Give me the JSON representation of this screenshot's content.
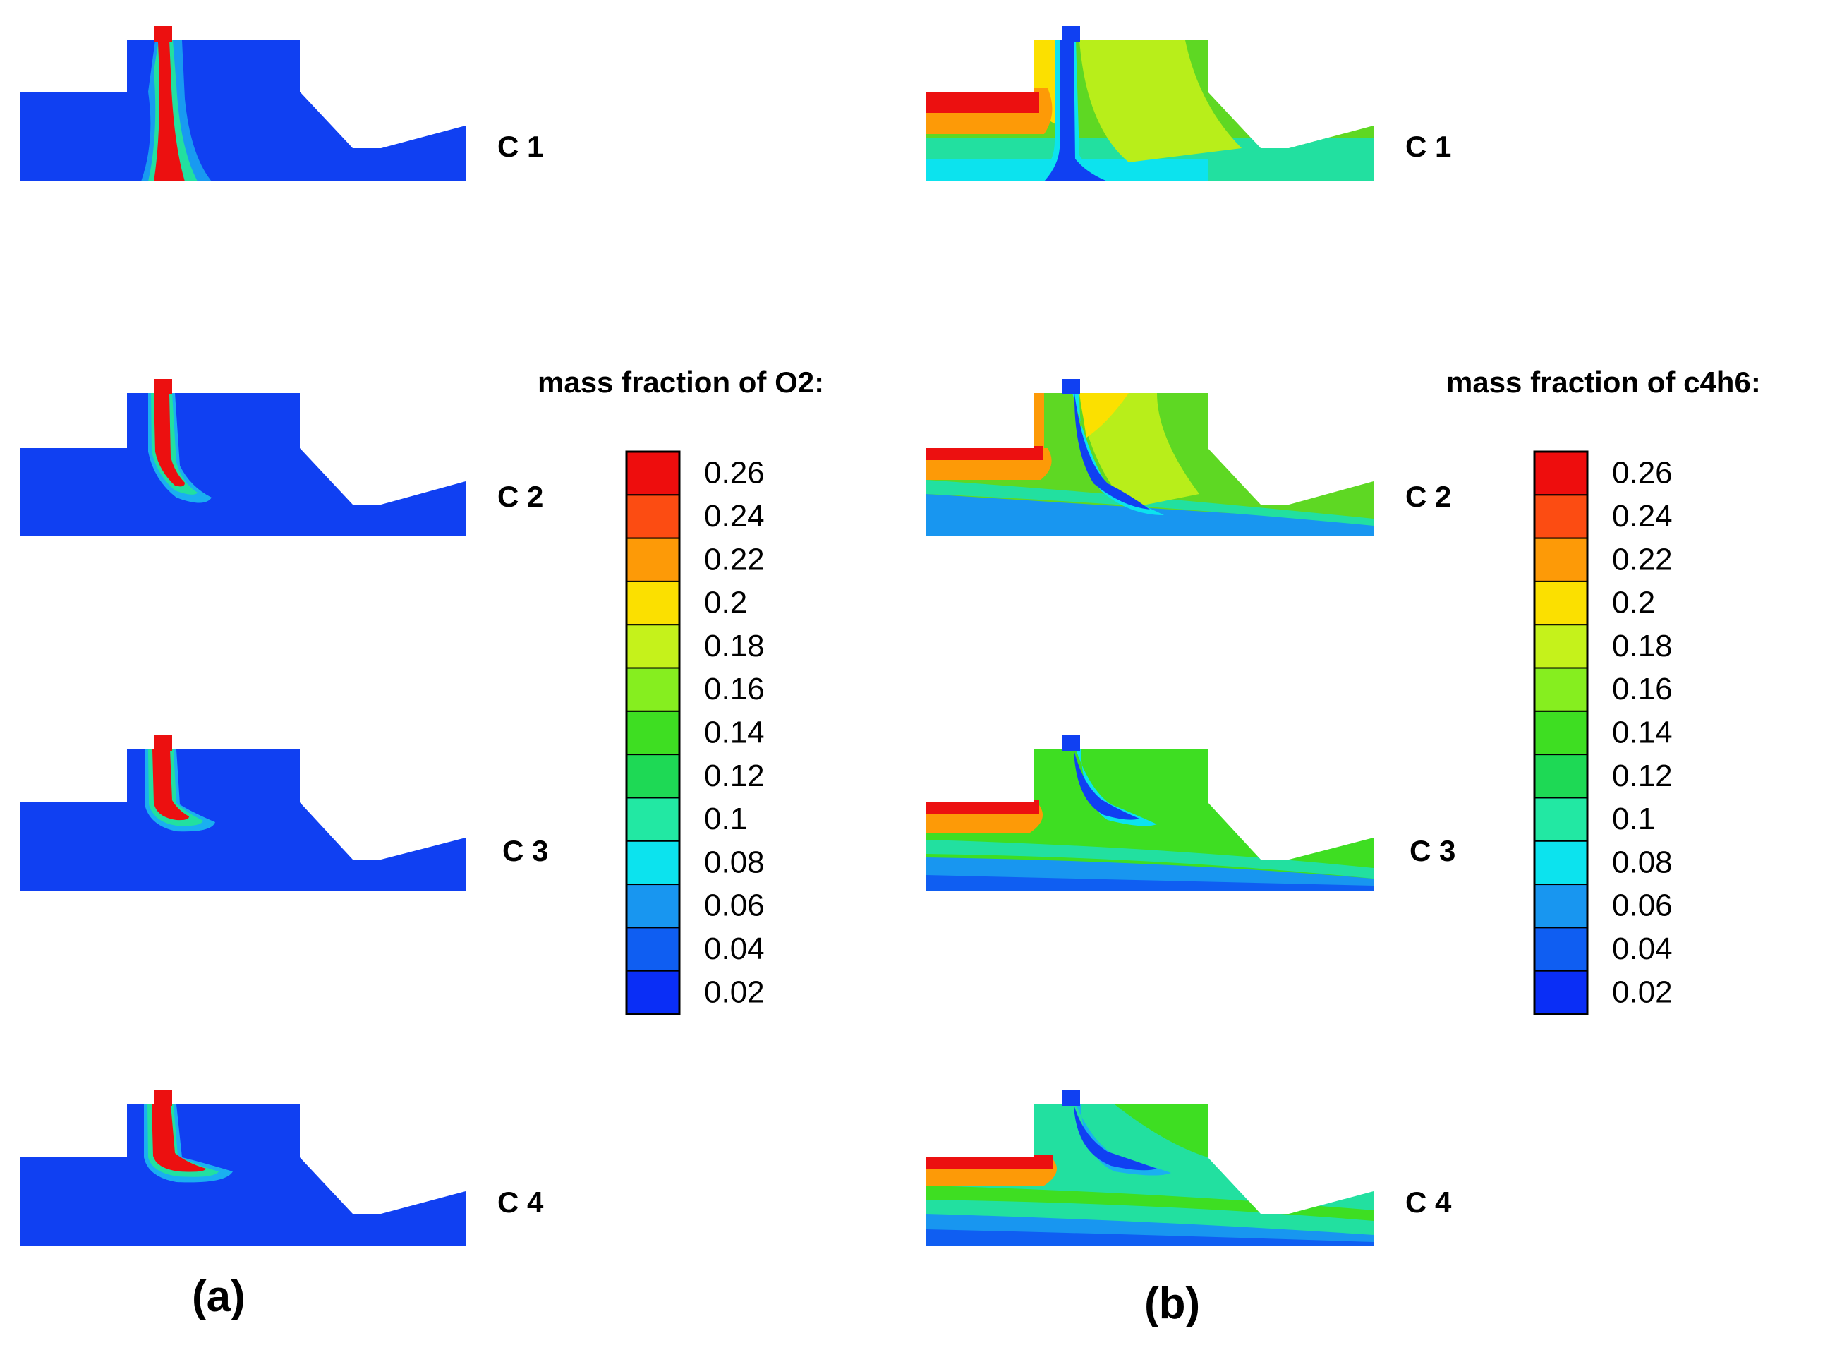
{
  "panel_a": {
    "label": "(a)",
    "legend_title": "mass fraction of O2:",
    "cases": [
      {
        "label": "C 1"
      },
      {
        "label": "C 2"
      },
      {
        "label": "C 3"
      },
      {
        "label": "C 4"
      }
    ]
  },
  "panel_b": {
    "label": "(b)",
    "legend_title": "mass fraction of c4h6:",
    "cases": [
      {
        "label": "C 1"
      },
      {
        "label": "C 2"
      },
      {
        "label": "C 3"
      },
      {
        "label": "C 4"
      }
    ]
  },
  "colorbar": {
    "ticks": [
      "0.26",
      "0.24",
      "0.22",
      "0.2",
      "0.18",
      "0.16",
      "0.14",
      "0.12",
      "0.1",
      "0.08",
      "0.06",
      "0.04",
      "0.02"
    ],
    "colors": [
      "#ee0d0d",
      "#fc4c12",
      "#fd9a07",
      "#fbe000",
      "#c5f21b",
      "#86ee1f",
      "#3ede22",
      "#1ed955",
      "#22e8a3",
      "#0ce3ee",
      "#1896f0",
      "#0f5ef2",
      "#0a2ef6"
    ]
  },
  "palette": {
    "blue": "#1040f2",
    "red": "#ec1010",
    "green": "#5ed823"
  }
}
